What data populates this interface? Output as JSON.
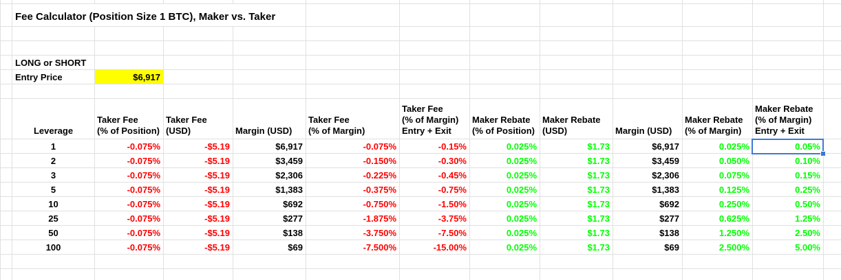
{
  "title": "Fee Calculator (Position Size 1 BTC), Maker vs. Taker",
  "inputs": {
    "long_or_short_label": "LONG or SHORT",
    "entry_price_label": "Entry Price",
    "entry_price_value": "$6,917"
  },
  "colors": {
    "negative_text": "#ff0000",
    "positive_text": "#00ff00",
    "entry_highlight": "#ffff00",
    "gridline": "#e0e0e0",
    "selection_border": "#3e78d8"
  },
  "table": {
    "columns": [
      {
        "label": "Leverage",
        "type": "plain",
        "align": "center"
      },
      {
        "label": "Taker Fee\n(% of Position)",
        "type": "negative",
        "align": "right"
      },
      {
        "label": "Taker Fee\n(USD)",
        "type": "negative",
        "align": "right"
      },
      {
        "label": "Margin (USD)",
        "type": "plain",
        "align": "right"
      },
      {
        "label": "Taker Fee\n(% of Margin)",
        "type": "negative",
        "align": "right"
      },
      {
        "label": "Taker Fee\n(% of Margin)\nEntry + Exit",
        "type": "negative",
        "align": "right"
      },
      {
        "label": "Maker Rebate\n(% of Position)",
        "type": "positive",
        "align": "right"
      },
      {
        "label": "Maker Rebate\n(USD)",
        "type": "positive",
        "align": "right"
      },
      {
        "label": "Margin (USD)",
        "type": "plain",
        "align": "right"
      },
      {
        "label": "Maker Rebate\n(% of Margin)",
        "type": "positive",
        "align": "right"
      },
      {
        "label": "Maker Rebate\n(% of Margin)\nEntry + Exit",
        "type": "positive",
        "align": "right"
      }
    ],
    "rows": [
      [
        "1",
        "-0.075%",
        "-$5.19",
        "$6,917",
        "-0.075%",
        "-0.15%",
        "0.025%",
        "$1.73",
        "$6,917",
        "0.025%",
        "0.05%"
      ],
      [
        "2",
        "-0.075%",
        "-$5.19",
        "$3,459",
        "-0.150%",
        "-0.30%",
        "0.025%",
        "$1.73",
        "$3,459",
        "0.050%",
        "0.10%"
      ],
      [
        "3",
        "-0.075%",
        "-$5.19",
        "$2,306",
        "-0.225%",
        "-0.45%",
        "0.025%",
        "$1.73",
        "$2,306",
        "0.075%",
        "0.15%"
      ],
      [
        "5",
        "-0.075%",
        "-$5.19",
        "$1,383",
        "-0.375%",
        "-0.75%",
        "0.025%",
        "$1.73",
        "$1,383",
        "0.125%",
        "0.25%"
      ],
      [
        "10",
        "-0.075%",
        "-$5.19",
        "$692",
        "-0.750%",
        "-1.50%",
        "0.025%",
        "$1.73",
        "$692",
        "0.250%",
        "0.50%"
      ],
      [
        "25",
        "-0.075%",
        "-$5.19",
        "$277",
        "-1.875%",
        "-3.75%",
        "0.025%",
        "$1.73",
        "$277",
        "0.625%",
        "1.25%"
      ],
      [
        "50",
        "-0.075%",
        "-$5.19",
        "$138",
        "-3.750%",
        "-7.50%",
        "0.025%",
        "$1.73",
        "$138",
        "1.250%",
        "2.50%"
      ],
      [
        "100",
        "-0.075%",
        "-$5.19",
        "$69",
        "-7.500%",
        "-15.00%",
        "0.025%",
        "$1.73",
        "$69",
        "2.500%",
        "5.00%"
      ]
    ],
    "selected_cell": {
      "row_index": 0,
      "col_index": 10,
      "value": "0.05%"
    }
  }
}
